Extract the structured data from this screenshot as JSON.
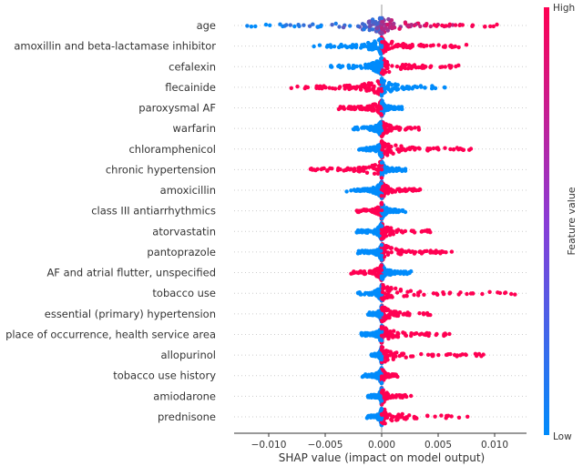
{
  "chart_data": {
    "type": "scatter",
    "subtype": "shap-beeswarm",
    "xlabel": "SHAP value (impact on model output)",
    "xlim": [
      -0.0131,
      0.0128
    ],
    "xticks": [
      -0.01,
      -0.005,
      0.0,
      0.005,
      0.01
    ],
    "xtick_labels": [
      "−0.010",
      "−0.005",
      "0.000",
      "0.005",
      "0.010"
    ],
    "grid": false,
    "colorbar": {
      "label": "Feature value",
      "high_label": "High",
      "low_label": "Low",
      "high_color": "#ff0052",
      "low_color": "#008bfb"
    },
    "features": [
      {
        "name": "age",
        "min": -0.0119,
        "max": 0.0102,
        "high_side": "mixed"
      },
      {
        "name": "amoxillin and beta-lactamase inhibitor",
        "min": -0.006,
        "max": 0.0075,
        "high_side": "positive"
      },
      {
        "name": "cefalexin",
        "min": -0.0045,
        "max": 0.0068,
        "high_side": "positive"
      },
      {
        "name": "flecainide",
        "min": -0.008,
        "max": 0.0056,
        "high_side": "negative"
      },
      {
        "name": "paroxysmal AF",
        "min": -0.0038,
        "max": 0.0018,
        "high_side": "negative"
      },
      {
        "name": "warfarin",
        "min": -0.0025,
        "max": 0.0033,
        "high_side": "positive"
      },
      {
        "name": "chloramphenicol",
        "min": -0.002,
        "max": 0.0079,
        "high_side": "positive"
      },
      {
        "name": "chronic hypertension",
        "min": -0.0063,
        "max": 0.0021,
        "high_side": "negative"
      },
      {
        "name": "amoxicillin",
        "min": -0.0031,
        "max": 0.0034,
        "high_side": "positive"
      },
      {
        "name": "class III antiarrhythmics",
        "min": -0.0022,
        "max": 0.0021,
        "high_side": "negative"
      },
      {
        "name": "atorvastatin",
        "min": -0.0022,
        "max": 0.0043,
        "high_side": "positive"
      },
      {
        "name": "pantoprazole",
        "min": -0.0021,
        "max": 0.0062,
        "high_side": "positive"
      },
      {
        "name": "AF and atrial flutter, unspecified",
        "min": -0.0027,
        "max": 0.0026,
        "high_side": "negative"
      },
      {
        "name": "tobacco use",
        "min": -0.0021,
        "max": 0.0118,
        "high_side": "positive"
      },
      {
        "name": "essential (primary) hypertension",
        "min": -0.0012,
        "max": 0.0043,
        "high_side": "positive"
      },
      {
        "name": "place of occurrence, health service area",
        "min": -0.0018,
        "max": 0.006,
        "high_side": "positive"
      },
      {
        "name": "allopurinol",
        "min": -0.0009,
        "max": 0.009,
        "high_side": "positive"
      },
      {
        "name": "tobacco use history",
        "min": -0.0017,
        "max": 0.0014,
        "high_side": "positive"
      },
      {
        "name": "amiodarone",
        "min": -0.0012,
        "max": 0.0026,
        "high_side": "positive"
      },
      {
        "name": "prednisone",
        "min": -0.0013,
        "max": 0.0076,
        "high_side": "positive"
      }
    ]
  }
}
